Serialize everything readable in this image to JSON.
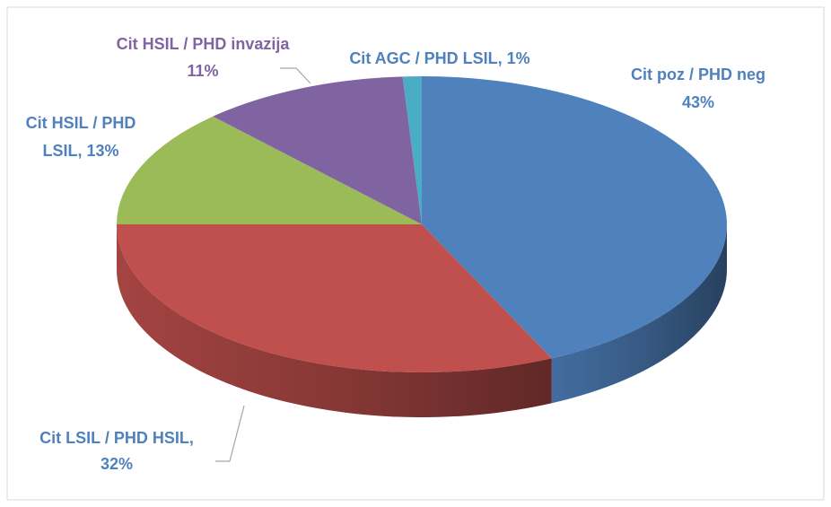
{
  "chart_data": {
    "type": "pie3d",
    "values": [
      43,
      32,
      13,
      11,
      1
    ],
    "value_labels": [
      [
        "Cit poz / PHD neg",
        "43%"
      ],
      [
        "Cit LSIL / PHD HSIL,",
        "32%"
      ],
      [
        "Cit HSIL / PHD",
        "LSIL, 13%"
      ],
      [
        "Cit HSIL / PHD invazija",
        "11%"
      ],
      [
        "Cit AGC / PHD LSIL, 1%"
      ]
    ],
    "colors": [
      "#4f81bd",
      "#c0504d",
      "#9bbb59",
      "#8064a2",
      "#4bacc6"
    ]
  }
}
